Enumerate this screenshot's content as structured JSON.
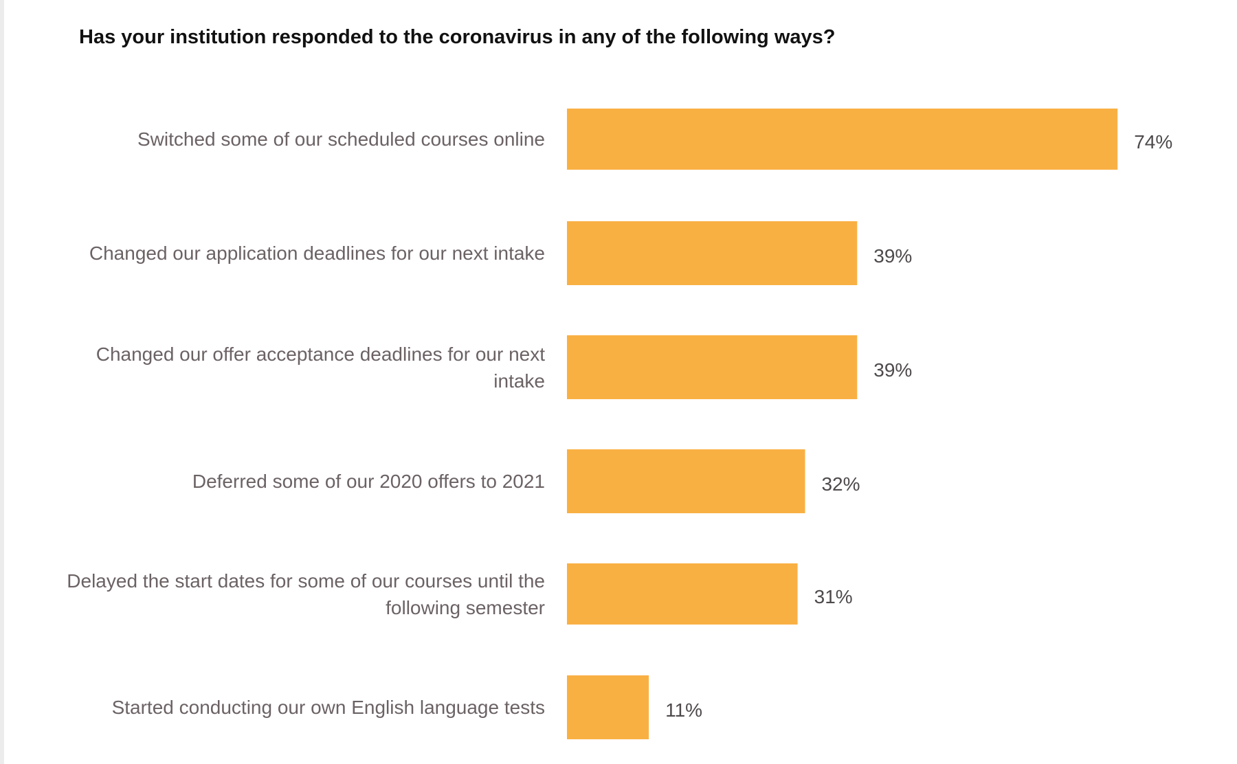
{
  "chart_data": {
    "type": "bar",
    "orientation": "horizontal",
    "title": "Has your institution responded to the coronavirus in any of the following ways?",
    "xlabel": "",
    "ylabel": "",
    "xlim": [
      0,
      100
    ],
    "grid": false,
    "legend": "none",
    "bar_color": "#F9B043",
    "categories": [
      "Switched some of our scheduled courses online",
      "Changed our application deadlines for our next intake",
      "Changed our offer acceptance deadlines for our next intake",
      "Deferred some of our 2020 offers to 2021",
      "Delayed the start dates for some of our courses until the following semester",
      "Started conducting our own English language tests"
    ],
    "values": [
      74,
      39,
      39,
      32,
      31,
      11
    ],
    "value_labels": [
      "74%",
      "39%",
      "39%",
      "32%",
      "31%",
      "11%"
    ]
  }
}
